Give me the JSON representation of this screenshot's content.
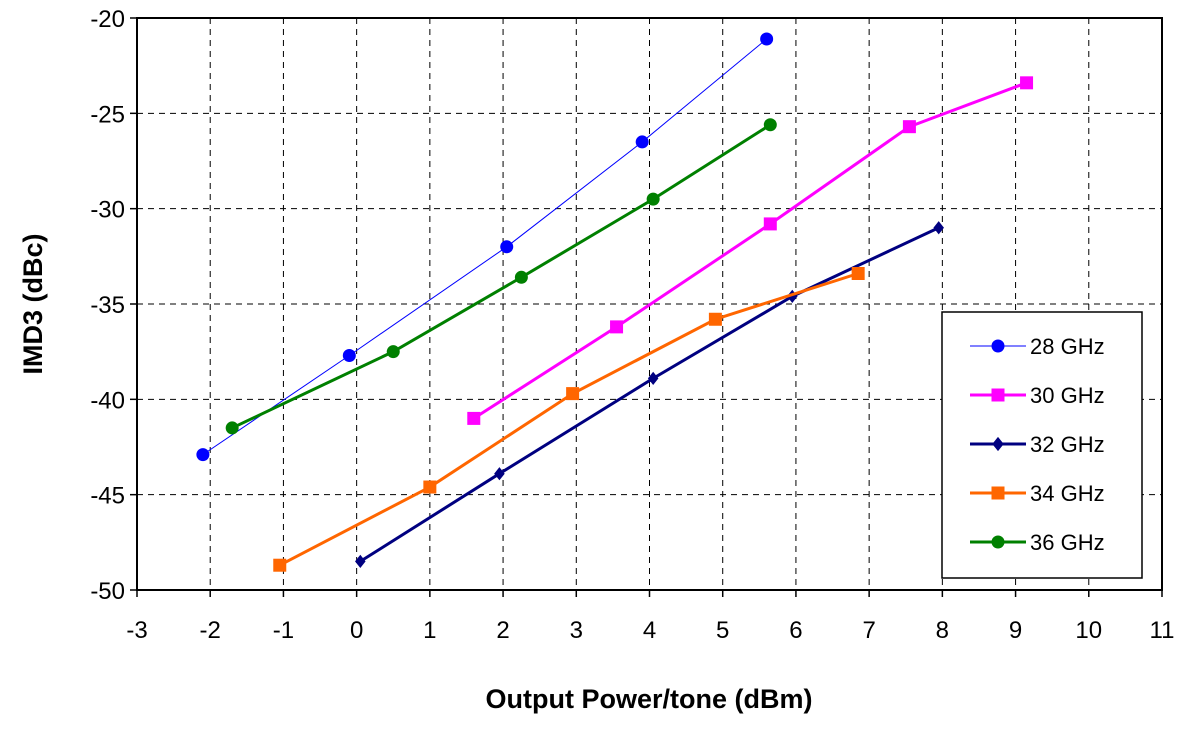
{
  "chart_data": {
    "type": "line",
    "title": "",
    "xlabel": "Output Power/tone (dBm)",
    "ylabel": "IMD3 (dBc)",
    "xlim": [
      -3,
      11
    ],
    "ylim": [
      -50,
      -20
    ],
    "xticks": [
      -3,
      -2,
      -1,
      0,
      1,
      2,
      3,
      4,
      5,
      6,
      7,
      8,
      9,
      10,
      11
    ],
    "yticks": [
      -20,
      -25,
      -30,
      -35,
      -40,
      -45,
      -50
    ],
    "grid": true,
    "legend_position": "bottom-right",
    "series": [
      {
        "name": "28 GHz",
        "color": "#0000FF",
        "marker": "circle",
        "line_width": 1,
        "x": [
          -2.1,
          -0.1,
          2.05,
          3.9,
          5.6
        ],
        "y": [
          -42.9,
          -37.7,
          -32.0,
          -26.5,
          -21.1
        ]
      },
      {
        "name": "30 GHz",
        "color": "#FF00FF",
        "marker": "square",
        "line_width": 3,
        "x": [
          1.6,
          3.55,
          5.65,
          7.55,
          9.15
        ],
        "y": [
          -41.0,
          -36.2,
          -30.8,
          -25.7,
          -23.4
        ]
      },
      {
        "name": "32 GHz",
        "color": "#000080",
        "marker": "diamond",
        "line_width": 3,
        "x": [
          0.05,
          1.95,
          4.05,
          5.95,
          7.95
        ],
        "y": [
          -48.5,
          -43.9,
          -38.9,
          -34.6,
          -31.0
        ]
      },
      {
        "name": "34 GHz",
        "color": "#FF6600",
        "marker": "square",
        "line_width": 3,
        "x": [
          -1.05,
          1.0,
          2.95,
          4.9,
          6.85
        ],
        "y": [
          -48.7,
          -44.6,
          -39.7,
          -35.8,
          -33.4
        ]
      },
      {
        "name": "36 GHz",
        "color": "#008000",
        "marker": "circle",
        "line_width": 3,
        "x": [
          -1.7,
          0.5,
          2.25,
          4.05,
          5.65
        ],
        "y": [
          -41.5,
          -37.5,
          -33.6,
          -29.5,
          -25.6
        ]
      }
    ]
  }
}
